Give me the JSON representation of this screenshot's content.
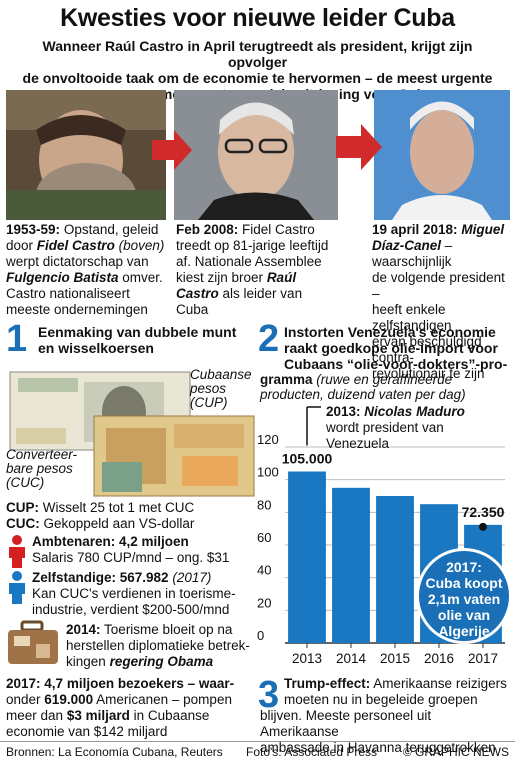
{
  "header": {
    "title": "Kwesties voor nieuwe leider Cuba",
    "subtitle_lines": [
      "Wanneer Raúl Castro in April terugtreedt als president, krijgt zijn opvolger",
      "de onvoltooide taak om de economie te hervormen – de meest urgente",
      "en meer en meer controversiele uitdaging voor Cuba"
    ]
  },
  "timeline": [
    {
      "year": "1953-59:",
      "lines": [
        "Opstand, geleid",
        "door",
        "(boven)",
        "werpt dictatorschap van",
        "omver.",
        "Castro nationaliseert",
        "meeste ondernemingen"
      ],
      "names": [
        "Fidel Castro",
        "Fulgencio Batista"
      ]
    },
    {
      "year": "Feb 2008:",
      "lines": [
        "Fidel Castro",
        "treedt op 81-jarige leeftijd",
        "af. Nationale Assemblee",
        "kiest zijn broer",
        "als leider van",
        "Cuba"
      ],
      "names": [
        "Raúl",
        "Castro"
      ]
    },
    {
      "year": "19 april 2018:",
      "lines": [
        "– waarschijnlijk",
        "de volgende president –",
        "heeft enkele zelfstandigen",
        "ervan beschuldigd contra-",
        "revolutionair te zijn"
      ],
      "names": [
        "Miguel",
        "Díaz-Canel"
      ]
    }
  ],
  "section1": {
    "number": "1",
    "heading_lines": [
      "Eenmaking van dubbele munt",
      "en wisselkoersen"
    ],
    "cup_label_lines": [
      "Cubaanse",
      "pesos",
      "(CUP)"
    ],
    "cuc_label_lines": [
      "Converteer-",
      "bare pesos",
      "(CUC)"
    ],
    "cup_key": "CUP:",
    "cup_text": "Wisselt 25 tot 1 met CUC",
    "cuc_key": "CUC:",
    "cuc_text": "Gekoppeld aan VS-dollar",
    "civil_head": "Ambtenaren: 4,2 miljoen",
    "civil_text": "Salaris 780 CUP/mnd – ong. $31",
    "self_head": "Zelfstandige: 567.982",
    "self_year": "(2017)",
    "self_lines": [
      "Kan CUC's verdienen in toerisme-",
      "industrie, verdient $200-500/mnd"
    ],
    "tour_year": "2014:",
    "tour_lines": [
      "Toerisme bloeit op na",
      "herstellen diplomatieke betrek-",
      "kingen"
    ],
    "tour_name": "regering Obama",
    "visit_lines": [
      "4,7 miljoen bezoekers – waar-",
      "onder",
      "Americanen – pompen",
      "meer dan",
      "in Cubaanse",
      "economie van $142 miljard"
    ],
    "visit_year": "2017:",
    "visit_bold": [
      "619.000",
      "$3 miljard"
    ]
  },
  "section2": {
    "number": "2",
    "heading_lines": [
      "Instorten Venezuela's economie",
      "raakt goedkope olie-import voor",
      "Cubaans “olie-voor-dokters”-pro-",
      "gramma"
    ],
    "sub_lines": [
      "(ruwe en geraffineerde",
      "producten, duizend vaten per dag)"
    ],
    "maduro_lines": [
      "2013:",
      "Nicolas Maduro",
      "wordt president van",
      "Venezuela"
    ],
    "bubble_lines": [
      "2017:",
      "Cuba koopt",
      "2,1m vaten",
      "olie van",
      "Algerije"
    ]
  },
  "chart_data": {
    "type": "bar",
    "categories": [
      "2013",
      "2014",
      "2015",
      "2016",
      "2017"
    ],
    "values": [
      105000,
      95000,
      90000,
      85000,
      72350
    ],
    "data_labels": [
      "105.000",
      "",
      "",
      "",
      "72.350"
    ],
    "yticks": [
      "0",
      "20",
      "40",
      "60",
      "80",
      "100",
      "120"
    ],
    "ylim": [
      0,
      120000
    ],
    "grid": true,
    "bar_color": "#1a78c2"
  },
  "section3": {
    "number": "3",
    "heading": "Trump-effect:",
    "lines": [
      "Amerikaanse reizigers",
      "moeten nu in begeleide groepen",
      "blijven. Meeste personeel uit Amerikaanse",
      "ambassade in Havanna teruggetrokken"
    ]
  },
  "footer": {
    "sources": "Bronnen: La Economía Cubana, Reuters",
    "photos": "Foto's: Associated Press",
    "credit": "© GRAPHIC NEWS"
  },
  "colors": {
    "accent": "#1a6fb6",
    "arrow": "#d02a2a",
    "civil": "#d42020",
    "self": "#1a78c2"
  }
}
